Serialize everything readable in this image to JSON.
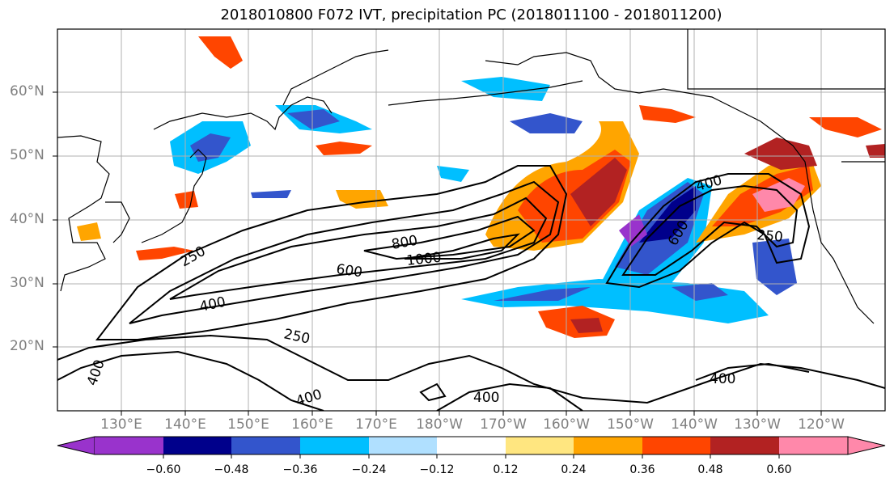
{
  "title": "2018010800 F072 IVT, precipitation PC (2018011100 - 2018011200)",
  "latitude_labels": [
    "60°N",
    "50°N",
    "40°N",
    "30°N",
    "20°N"
  ],
  "longitude_labels": [
    "130°E",
    "140°E",
    "150°E",
    "160°E",
    "170°E",
    "180°W",
    "170°W",
    "160°W",
    "150°W",
    "140°W",
    "130°W",
    "120°W"
  ],
  "ivt_contour_labels": [
    "250",
    "400",
    "600",
    "800",
    "1000",
    "250",
    "400",
    "400",
    "400",
    "600",
    "400",
    "250",
    "400"
  ],
  "colorbar": {
    "tick_labels": [
      "−0.60",
      "−0.48",
      "−0.36",
      "−0.24",
      "−0.12",
      "0.12",
      "0.24",
      "0.36",
      "0.48",
      "0.60"
    ],
    "colors": [
      "#9933cc",
      "#00008b",
      "#3355cc",
      "#00bfff",
      "#b0e0ff",
      "#ffffff",
      "#ffe680",
      "#ffa500",
      "#ff4500",
      "#b22222",
      "#ff88aa"
    ]
  }
}
